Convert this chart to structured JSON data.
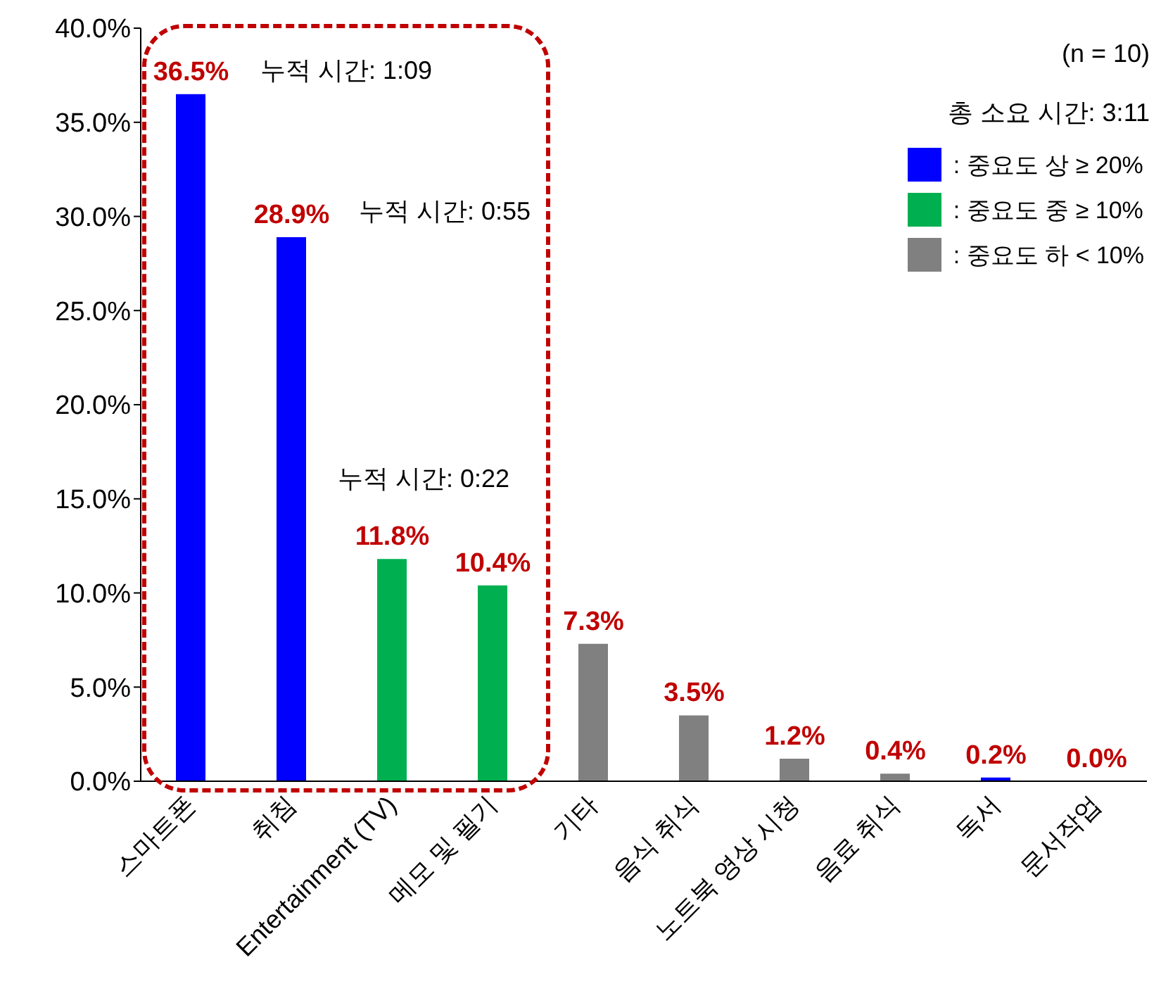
{
  "chart_data": {
    "type": "bar",
    "stacked": true,
    "categories": [
      "스마트폰",
      "취침",
      "Entertainment (TV)",
      "메모 및 필기",
      "기타",
      "음식 취식",
      "노트북 영상 시청",
      "음료 취식",
      "독서",
      "문서작업"
    ],
    "series": [
      {
        "name": ": 중요도 상 ≥ 20%",
        "color": "#0000ff",
        "values": [
          36.5,
          28.9,
          null,
          null,
          null,
          null,
          null,
          null,
          0.2,
          null
        ],
        "value_labels": [
          "36.5%",
          "28.9%",
          null,
          null,
          null,
          null,
          null,
          null,
          "0.2%",
          null
        ]
      },
      {
        "name": ": 중요도 중 ≥ 10%",
        "color": "#00b050",
        "values": [
          null,
          null,
          11.8,
          10.4,
          null,
          null,
          null,
          null,
          null,
          null
        ],
        "value_labels": [
          null,
          null,
          "11.8%",
          "10.4%",
          null,
          null,
          null,
          null,
          null,
          null
        ]
      },
      {
        "name": ": 중요도 하 < 10%",
        "color": "#808080",
        "values": [
          null,
          null,
          null,
          null,
          7.3,
          3.5,
          1.2,
          0.4,
          null,
          0.0
        ],
        "value_labels": [
          null,
          null,
          null,
          null,
          "7.3%",
          "3.5%",
          "1.2%",
          "0.4%",
          null,
          "0.0%"
        ]
      }
    ],
    "ylim": [
      0,
      40
    ],
    "yticks": [
      {
        "value": 0,
        "label": "0.0%"
      },
      {
        "value": 5,
        "label": "5.0%"
      },
      {
        "value": 10,
        "label": "10.0%"
      },
      {
        "value": 15,
        "label": "15.0%"
      },
      {
        "value": 20,
        "label": "20.0%"
      },
      {
        "value": 25,
        "label": "25.0%"
      },
      {
        "value": 30,
        "label": "30.0%"
      },
      {
        "value": 35,
        "label": "35.0%"
      },
      {
        "value": 40,
        "label": "40.0%"
      }
    ],
    "grid": false,
    "legend": "top right",
    "annotations": [
      "누적 시간: 1:09",
      "누적 시간: 0:55",
      "누적 시간: 0:22",
      "(n = 10)",
      "총 소요 시간: 3:11"
    ]
  }
}
